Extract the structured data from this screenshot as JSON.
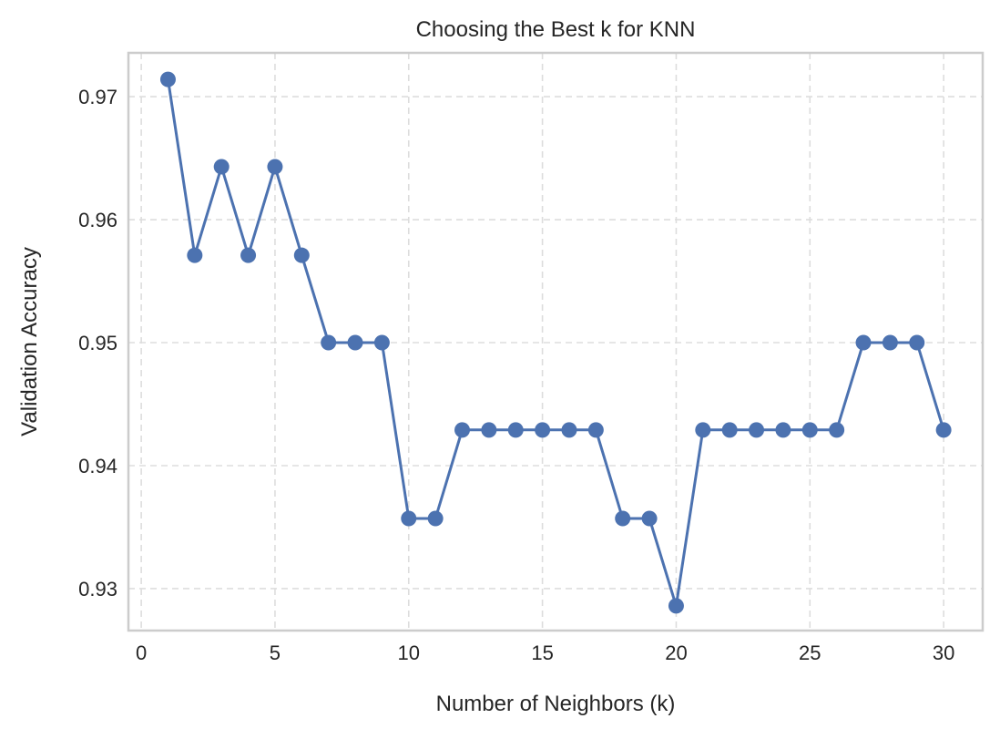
{
  "chart_data": {
    "type": "line",
    "title": "Choosing the Best k for KNN",
    "xlabel": "Number of Neighbors (k)",
    "ylabel": "Validation Accuracy",
    "x": [
      1,
      2,
      3,
      4,
      5,
      6,
      7,
      8,
      9,
      10,
      11,
      12,
      13,
      14,
      15,
      16,
      17,
      18,
      19,
      20,
      21,
      22,
      23,
      24,
      25,
      26,
      27,
      28,
      29,
      30
    ],
    "series": [
      {
        "name": "Validation Accuracy",
        "color": "#4c72b0",
        "marker": "circle",
        "values": [
          0.9714,
          0.9571,
          0.9643,
          0.9571,
          0.9643,
          0.9571,
          0.95,
          0.95,
          0.95,
          0.9357,
          0.9357,
          0.9429,
          0.9429,
          0.9429,
          0.9429,
          0.9429,
          0.9429,
          0.9357,
          0.9357,
          0.9286,
          0.9429,
          0.9429,
          0.9429,
          0.9429,
          0.9429,
          0.9429,
          0.95,
          0.95,
          0.95,
          0.9429
        ]
      }
    ],
    "xlim": [
      -0.48,
      31.46
    ],
    "ylim": [
      0.92659,
      0.97356
    ],
    "xticks": [
      0,
      5,
      10,
      15,
      20,
      25,
      30
    ],
    "xtick_labels": [
      "0",
      "5",
      "10",
      "15",
      "20",
      "25",
      "30"
    ],
    "yticks": [
      0.93,
      0.94,
      0.95,
      0.96,
      0.97
    ],
    "ytick_labels": [
      "0.93",
      "0.94",
      "0.95",
      "0.96",
      "0.97"
    ],
    "grid": true,
    "grid_style": "dashed"
  }
}
